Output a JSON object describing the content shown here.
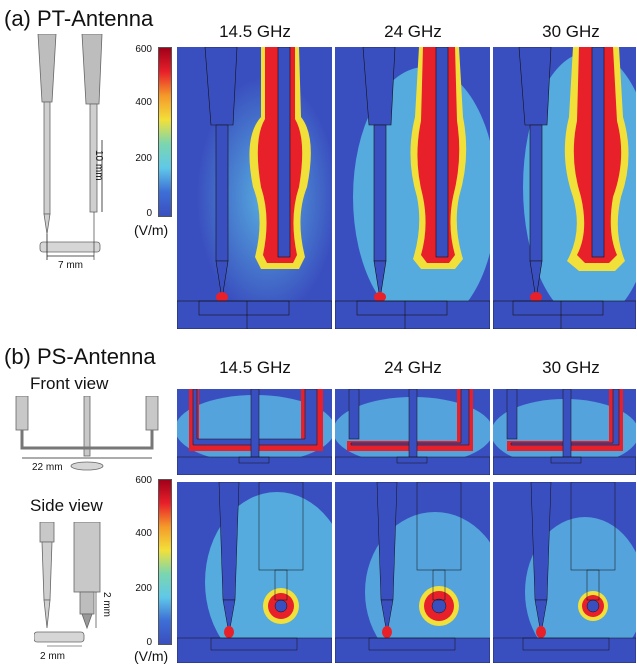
{
  "section_a": {
    "label": "(a) PT-Antenna",
    "dims": {
      "length": "10 mm",
      "gap": "7 mm"
    },
    "frequencies": [
      "14.5 GHz",
      "24 GHz",
      "30 GHz"
    ],
    "colorbar": {
      "ticks": [
        "600",
        "400",
        "200",
        "0"
      ],
      "unit": "(V/m)"
    }
  },
  "section_b": {
    "label": "(b) PS-Antenna",
    "front_view_label": "Front view",
    "side_view_label": "Side view",
    "dims": {
      "front_width": "22 mm",
      "side_height": "2 mm",
      "side_width": "2 mm"
    },
    "frequencies": [
      "14.5 GHz",
      "24 GHz",
      "30 GHz"
    ],
    "colorbar": {
      "ticks": [
        "600",
        "400",
        "200",
        "0"
      ],
      "unit": "(V/m)"
    }
  },
  "colors": {
    "field_low": "#3a4fbf",
    "field_mid": "#5fc8e8",
    "field_high": "#e8202a",
    "field_warm": "#f2e03a"
  },
  "colorbar_scale": {
    "min": 0,
    "max": 600
  }
}
